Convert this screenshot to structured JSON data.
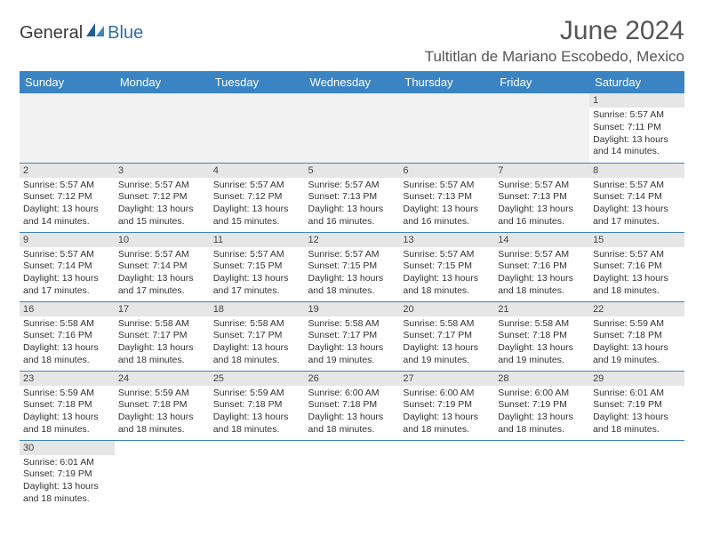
{
  "logo": {
    "text1": "General",
    "text2": "Blue"
  },
  "title": "June 2024",
  "location": "Tultitlan de Mariano Escobedo, Mexico",
  "colors": {
    "header_bg": "#3b84c4",
    "header_text": "#ffffff",
    "daynum_bg": "#e6e6e6",
    "empty_bg": "#f2f2f2",
    "border": "#3b84c4",
    "logo_blue": "#2f6fa8"
  },
  "weekdays": [
    "Sunday",
    "Monday",
    "Tuesday",
    "Wednesday",
    "Thursday",
    "Friday",
    "Saturday"
  ],
  "weeks": [
    [
      {
        "empty": true
      },
      {
        "empty": true
      },
      {
        "empty": true
      },
      {
        "empty": true
      },
      {
        "empty": true
      },
      {
        "empty": true
      },
      {
        "day": "1",
        "sunrise": "Sunrise: 5:57 AM",
        "sunset": "Sunset: 7:11 PM",
        "daylight": "Daylight: 13 hours and 14 minutes."
      }
    ],
    [
      {
        "day": "2",
        "sunrise": "Sunrise: 5:57 AM",
        "sunset": "Sunset: 7:12 PM",
        "daylight": "Daylight: 13 hours and 14 minutes."
      },
      {
        "day": "3",
        "sunrise": "Sunrise: 5:57 AM",
        "sunset": "Sunset: 7:12 PM",
        "daylight": "Daylight: 13 hours and 15 minutes."
      },
      {
        "day": "4",
        "sunrise": "Sunrise: 5:57 AM",
        "sunset": "Sunset: 7:12 PM",
        "daylight": "Daylight: 13 hours and 15 minutes."
      },
      {
        "day": "5",
        "sunrise": "Sunrise: 5:57 AM",
        "sunset": "Sunset: 7:13 PM",
        "daylight": "Daylight: 13 hours and 16 minutes."
      },
      {
        "day": "6",
        "sunrise": "Sunrise: 5:57 AM",
        "sunset": "Sunset: 7:13 PM",
        "daylight": "Daylight: 13 hours and 16 minutes."
      },
      {
        "day": "7",
        "sunrise": "Sunrise: 5:57 AM",
        "sunset": "Sunset: 7:13 PM",
        "daylight": "Daylight: 13 hours and 16 minutes."
      },
      {
        "day": "8",
        "sunrise": "Sunrise: 5:57 AM",
        "sunset": "Sunset: 7:14 PM",
        "daylight": "Daylight: 13 hours and 17 minutes."
      }
    ],
    [
      {
        "day": "9",
        "sunrise": "Sunrise: 5:57 AM",
        "sunset": "Sunset: 7:14 PM",
        "daylight": "Daylight: 13 hours and 17 minutes."
      },
      {
        "day": "10",
        "sunrise": "Sunrise: 5:57 AM",
        "sunset": "Sunset: 7:14 PM",
        "daylight": "Daylight: 13 hours and 17 minutes."
      },
      {
        "day": "11",
        "sunrise": "Sunrise: 5:57 AM",
        "sunset": "Sunset: 7:15 PM",
        "daylight": "Daylight: 13 hours and 17 minutes."
      },
      {
        "day": "12",
        "sunrise": "Sunrise: 5:57 AM",
        "sunset": "Sunset: 7:15 PM",
        "daylight": "Daylight: 13 hours and 18 minutes."
      },
      {
        "day": "13",
        "sunrise": "Sunrise: 5:57 AM",
        "sunset": "Sunset: 7:15 PM",
        "daylight": "Daylight: 13 hours and 18 minutes."
      },
      {
        "day": "14",
        "sunrise": "Sunrise: 5:57 AM",
        "sunset": "Sunset: 7:16 PM",
        "daylight": "Daylight: 13 hours and 18 minutes."
      },
      {
        "day": "15",
        "sunrise": "Sunrise: 5:57 AM",
        "sunset": "Sunset: 7:16 PM",
        "daylight": "Daylight: 13 hours and 18 minutes."
      }
    ],
    [
      {
        "day": "16",
        "sunrise": "Sunrise: 5:58 AM",
        "sunset": "Sunset: 7:16 PM",
        "daylight": "Daylight: 13 hours and 18 minutes."
      },
      {
        "day": "17",
        "sunrise": "Sunrise: 5:58 AM",
        "sunset": "Sunset: 7:17 PM",
        "daylight": "Daylight: 13 hours and 18 minutes."
      },
      {
        "day": "18",
        "sunrise": "Sunrise: 5:58 AM",
        "sunset": "Sunset: 7:17 PM",
        "daylight": "Daylight: 13 hours and 18 minutes."
      },
      {
        "day": "19",
        "sunrise": "Sunrise: 5:58 AM",
        "sunset": "Sunset: 7:17 PM",
        "daylight": "Daylight: 13 hours and 19 minutes."
      },
      {
        "day": "20",
        "sunrise": "Sunrise: 5:58 AM",
        "sunset": "Sunset: 7:17 PM",
        "daylight": "Daylight: 13 hours and 19 minutes."
      },
      {
        "day": "21",
        "sunrise": "Sunrise: 5:58 AM",
        "sunset": "Sunset: 7:18 PM",
        "daylight": "Daylight: 13 hours and 19 minutes."
      },
      {
        "day": "22",
        "sunrise": "Sunrise: 5:59 AM",
        "sunset": "Sunset: 7:18 PM",
        "daylight": "Daylight: 13 hours and 19 minutes."
      }
    ],
    [
      {
        "day": "23",
        "sunrise": "Sunrise: 5:59 AM",
        "sunset": "Sunset: 7:18 PM",
        "daylight": "Daylight: 13 hours and 18 minutes."
      },
      {
        "day": "24",
        "sunrise": "Sunrise: 5:59 AM",
        "sunset": "Sunset: 7:18 PM",
        "daylight": "Daylight: 13 hours and 18 minutes."
      },
      {
        "day": "25",
        "sunrise": "Sunrise: 5:59 AM",
        "sunset": "Sunset: 7:18 PM",
        "daylight": "Daylight: 13 hours and 18 minutes."
      },
      {
        "day": "26",
        "sunrise": "Sunrise: 6:00 AM",
        "sunset": "Sunset: 7:18 PM",
        "daylight": "Daylight: 13 hours and 18 minutes."
      },
      {
        "day": "27",
        "sunrise": "Sunrise: 6:00 AM",
        "sunset": "Sunset: 7:19 PM",
        "daylight": "Daylight: 13 hours and 18 minutes."
      },
      {
        "day": "28",
        "sunrise": "Sunrise: 6:00 AM",
        "sunset": "Sunset: 7:19 PM",
        "daylight": "Daylight: 13 hours and 18 minutes."
      },
      {
        "day": "29",
        "sunrise": "Sunrise: 6:01 AM",
        "sunset": "Sunset: 7:19 PM",
        "daylight": "Daylight: 13 hours and 18 minutes."
      }
    ],
    [
      {
        "day": "30",
        "sunrise": "Sunrise: 6:01 AM",
        "sunset": "Sunset: 7:19 PM",
        "daylight": "Daylight: 13 hours and 18 minutes."
      },
      {
        "empty": true
      },
      {
        "empty": true
      },
      {
        "empty": true
      },
      {
        "empty": true
      },
      {
        "empty": true
      },
      {
        "empty": true
      }
    ]
  ]
}
